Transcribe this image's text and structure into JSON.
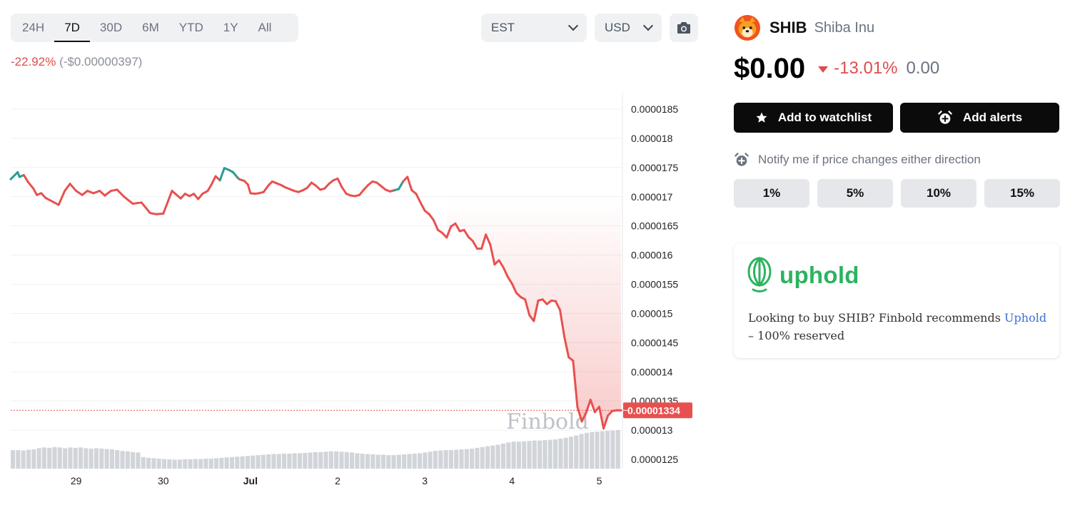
{
  "toolbar": {
    "ranges": [
      "24H",
      "7D",
      "30D",
      "6M",
      "YTD",
      "1Y",
      "All"
    ],
    "active_range": "7D",
    "timezone": "EST",
    "currency": "USD"
  },
  "period_change": {
    "percent": "-22.92%",
    "absolute": "(-$0.00000397)"
  },
  "coin": {
    "symbol": "SHIB",
    "name": "Shiba Inu",
    "price": "$0.00",
    "change_percent": "-13.01%",
    "change_absolute": "0.00"
  },
  "actions": {
    "watchlist_label": "Add to watchlist",
    "alerts_label": "Add alerts",
    "notify_text": "Notify me if price changes either direction",
    "percent_options": [
      "1%",
      "5%",
      "10%",
      "15%"
    ]
  },
  "promo": {
    "brand": "uphold",
    "text_before": "Looking to buy SHIB? Finbold recommends ",
    "link_text": "Uphold",
    "text_after": " – 100% reserved"
  },
  "colors": {
    "up": "#2a9d8f",
    "down": "#e8504f",
    "accent_green": "#2cb360"
  },
  "chart_data": {
    "type": "line",
    "watermark": "Finbold",
    "current_price_label": "0.00001334",
    "current_price": 1.334e-05,
    "y_ticks": [
      "0.0000185",
      "0.000018",
      "0.0000175",
      "0.000017",
      "0.0000165",
      "0.000016",
      "0.0000155",
      "0.000015",
      "0.0000145",
      "0.000014",
      "0.0000135",
      "0.000013",
      "0.0000125"
    ],
    "ylim": [
      1.23e-05,
      1.89e-05
    ],
    "x_ticks": [
      {
        "label": "29",
        "t": 0.75,
        "bold": false
      },
      {
        "label": "30",
        "t": 1.75,
        "bold": false
      },
      {
        "label": "Jul",
        "t": 2.75,
        "bold": true
      },
      {
        "label": "2",
        "t": 3.75,
        "bold": false
      },
      {
        "label": "3",
        "t": 4.75,
        "bold": false
      },
      {
        "label": "4",
        "t": 5.75,
        "bold": false
      },
      {
        "label": "5",
        "t": 6.75,
        "bold": false
      }
    ],
    "xlim": [
      0,
      7.0
    ],
    "series": [
      {
        "t": [
          0.0,
          0.08,
          0.1,
          0.15,
          0.2,
          0.26,
          0.3,
          0.35,
          0.4,
          0.45,
          0.55,
          0.62,
          0.68,
          0.75,
          0.82,
          0.88,
          0.95,
          1.02,
          1.08,
          1.15,
          1.22,
          1.3,
          1.4,
          1.5,
          1.6,
          1.67,
          1.75,
          1.85,
          1.95,
          2.0,
          2.05,
          2.1,
          2.15,
          2.2,
          2.26,
          2.3,
          2.35,
          2.4,
          2.45,
          2.5,
          2.55,
          2.6,
          2.62,
          2.68,
          2.72,
          2.75,
          2.8,
          2.85,
          2.9,
          2.96,
          3.0,
          3.05,
          3.1,
          3.15,
          3.2,
          3.25,
          3.3,
          3.35,
          3.4,
          3.45,
          3.5,
          3.55,
          3.6,
          3.65,
          3.7,
          3.75,
          3.8,
          3.85,
          3.9,
          3.95,
          4.0,
          4.05,
          4.1,
          4.15,
          4.2,
          4.25,
          4.3,
          4.35,
          4.4,
          4.45,
          4.5,
          4.55,
          4.6,
          4.65,
          4.7,
          4.75,
          4.8,
          4.85,
          4.9,
          4.95,
          5.0,
          5.05,
          5.1,
          5.15,
          5.2,
          5.25,
          5.3,
          5.35,
          5.4,
          5.45,
          5.5,
          5.55,
          5.6,
          5.65,
          5.7,
          5.75,
          5.8,
          5.85,
          5.9,
          5.95,
          6.0,
          6.05,
          6.1,
          6.15,
          6.2,
          6.25,
          6.3,
          6.35,
          6.4,
          6.45,
          6.5,
          6.55,
          6.6,
          6.65,
          6.7,
          6.75,
          6.8,
          6.85,
          6.9,
          6.95,
          7.0
        ],
        "values": [
          1.73,
          1.742,
          1.734,
          1.737,
          1.725,
          1.714,
          1.703,
          1.706,
          1.698,
          1.694,
          1.686,
          1.71,
          1.722,
          1.71,
          1.703,
          1.71,
          1.706,
          1.71,
          1.702,
          1.71,
          1.712,
          1.7,
          1.688,
          1.69,
          1.672,
          1.67,
          1.671,
          1.71,
          1.697,
          1.705,
          1.701,
          1.705,
          1.696,
          1.705,
          1.71,
          1.72,
          1.735,
          1.728,
          1.749,
          1.746,
          1.742,
          1.733,
          1.73,
          1.727,
          1.721,
          1.706,
          1.705,
          1.706,
          1.708,
          1.72,
          1.726,
          1.723,
          1.72,
          1.716,
          1.713,
          1.71,
          1.708,
          1.711,
          1.715,
          1.724,
          1.719,
          1.712,
          1.714,
          1.722,
          1.728,
          1.731,
          1.716,
          1.705,
          1.702,
          1.701,
          1.703,
          1.712,
          1.72,
          1.726,
          1.724,
          1.718,
          1.712,
          1.709,
          1.711,
          1.713,
          1.726,
          1.734,
          1.711,
          1.705,
          1.69,
          1.676,
          1.67,
          1.66,
          1.643,
          1.638,
          1.63,
          1.649,
          1.654,
          1.641,
          1.643,
          1.631,
          1.624,
          1.611,
          1.611,
          1.635,
          1.618,
          1.584,
          1.591,
          1.579,
          1.563,
          1.551,
          1.535,
          1.528,
          1.524,
          1.497,
          1.487,
          1.522,
          1.524,
          1.516,
          1.522,
          1.521,
          1.506,
          1.46,
          1.425,
          1.419,
          1.34,
          1.315,
          1.33,
          1.352,
          1.331,
          1.34,
          1.303,
          1.325,
          1.333,
          1.334,
          1.334
        ],
        "value_scale": 1e-05
      }
    ],
    "up_segments": [
      [
        0.0,
        0.15
      ],
      [
        2.4,
        2.62
      ],
      [
        4.4,
        4.5
      ]
    ],
    "volume": [
      0.48,
      0.48,
      0.47,
      0.49,
      0.5,
      0.53,
      0.55,
      0.54,
      0.56,
      0.55,
      0.53,
      0.55,
      0.54,
      0.55,
      0.53,
      0.52,
      0.53,
      0.52,
      0.51,
      0.5,
      0.48,
      0.46,
      0.45,
      0.43,
      0.42,
      0.3,
      0.28,
      0.27,
      0.26,
      0.25,
      0.24,
      0.23,
      0.23,
      0.24,
      0.24,
      0.25,
      0.25,
      0.26,
      0.26,
      0.27,
      0.28,
      0.29,
      0.3,
      0.31,
      0.32,
      0.33,
      0.34,
      0.35,
      0.36,
      0.37,
      0.38,
      0.38,
      0.39,
      0.39,
      0.4,
      0.4,
      0.41,
      0.42,
      0.43,
      0.43,
      0.44,
      0.45,
      0.45,
      0.44,
      0.43,
      0.42,
      0.4,
      0.39,
      0.38,
      0.37,
      0.36,
      0.36,
      0.35,
      0.35,
      0.36,
      0.37,
      0.38,
      0.39,
      0.4,
      0.42,
      0.44,
      0.46,
      0.47,
      0.48,
      0.48,
      0.49,
      0.5,
      0.51,
      0.52,
      0.54,
      0.56,
      0.58,
      0.6,
      0.62,
      0.65,
      0.68,
      0.7,
      0.7,
      0.71,
      0.72,
      0.73,
      0.73,
      0.74,
      0.75,
      0.76,
      0.78,
      0.8,
      0.83,
      0.86,
      0.9,
      0.93,
      0.95,
      0.96,
      0.97,
      0.98,
      0.99,
      1.0
    ]
  }
}
